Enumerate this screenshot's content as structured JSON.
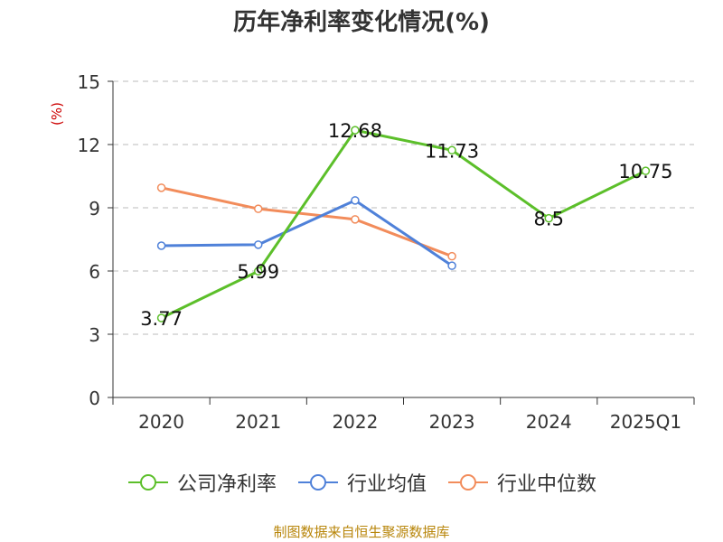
{
  "chart_data": {
    "type": "line",
    "title": "历年净利率变化情况(%)",
    "ylabel": "(%)",
    "xlabel": "",
    "ylim": [
      0,
      15
    ],
    "yticks": [
      0,
      3,
      6,
      9,
      12,
      15
    ],
    "grid": true,
    "legend_position": "bottom",
    "categories": [
      "2020",
      "2021",
      "2022",
      "2023",
      "2024",
      "2025Q1"
    ],
    "series": [
      {
        "name": "公司净利率",
        "color": "#5cbf2a",
        "values": [
          3.77,
          5.99,
          12.68,
          11.73,
          8.5,
          10.75
        ],
        "show_labels": true
      },
      {
        "name": "行业均值",
        "color": "#4f81d9",
        "values": [
          7.2,
          7.25,
          9.35,
          6.25,
          null,
          null
        ],
        "show_labels": false
      },
      {
        "name": "行业中位数",
        "color": "#f28c5b",
        "values": [
          9.95,
          8.95,
          8.45,
          6.7,
          null,
          null
        ],
        "show_labels": false
      }
    ],
    "data_labels": [
      "3.77",
      "5.99",
      "12.68",
      "11.73",
      "8.5",
      "10.75"
    ]
  },
  "source_note": "制图数据来自恒生聚源数据库"
}
